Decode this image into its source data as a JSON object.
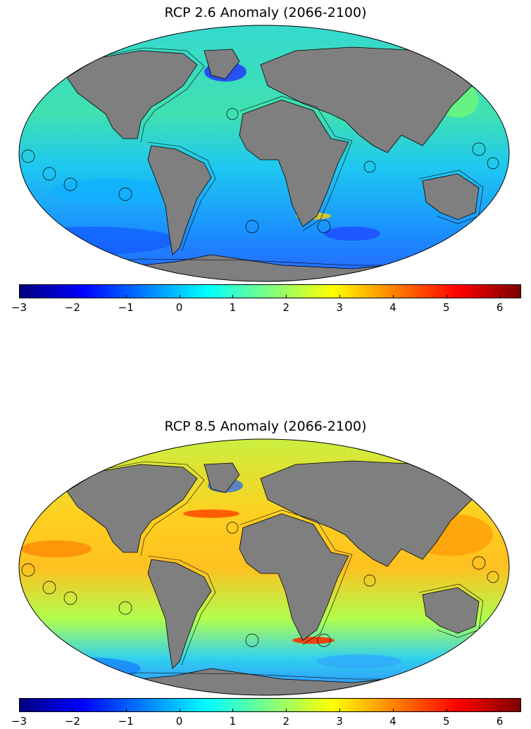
{
  "maps": [
    {
      "title": "RCP 2.6 Anomaly (2066-2100)",
      "scenario": "RCP 2.6",
      "period": "2066-2100"
    },
    {
      "title": "RCP 8.5 Anomaly (2066-2100)",
      "scenario": "RCP 8.5",
      "period": "2066-2100"
    }
  ],
  "colorbar": {
    "min": -3,
    "max": 6.4,
    "tick_values": [
      -3,
      -2,
      -1,
      0,
      1,
      2,
      3,
      4,
      5,
      6
    ],
    "tick_labels": [
      "−3",
      "−2",
      "−1",
      "0",
      "1",
      "2",
      "3",
      "4",
      "5",
      "6"
    ],
    "colormap": "jet",
    "colors": [
      "#00007f",
      "#0000ff",
      "#007fff",
      "#00ffff",
      "#7fff7f",
      "#ffff00",
      "#ff7f00",
      "#ff0000",
      "#7f0000"
    ]
  },
  "colors": {
    "land": "#7f7f7f",
    "coastline": "#000000",
    "rcp26_ocean_base": "#2fd4e8",
    "rcp85_ocean_base": "#c8f040"
  }
}
